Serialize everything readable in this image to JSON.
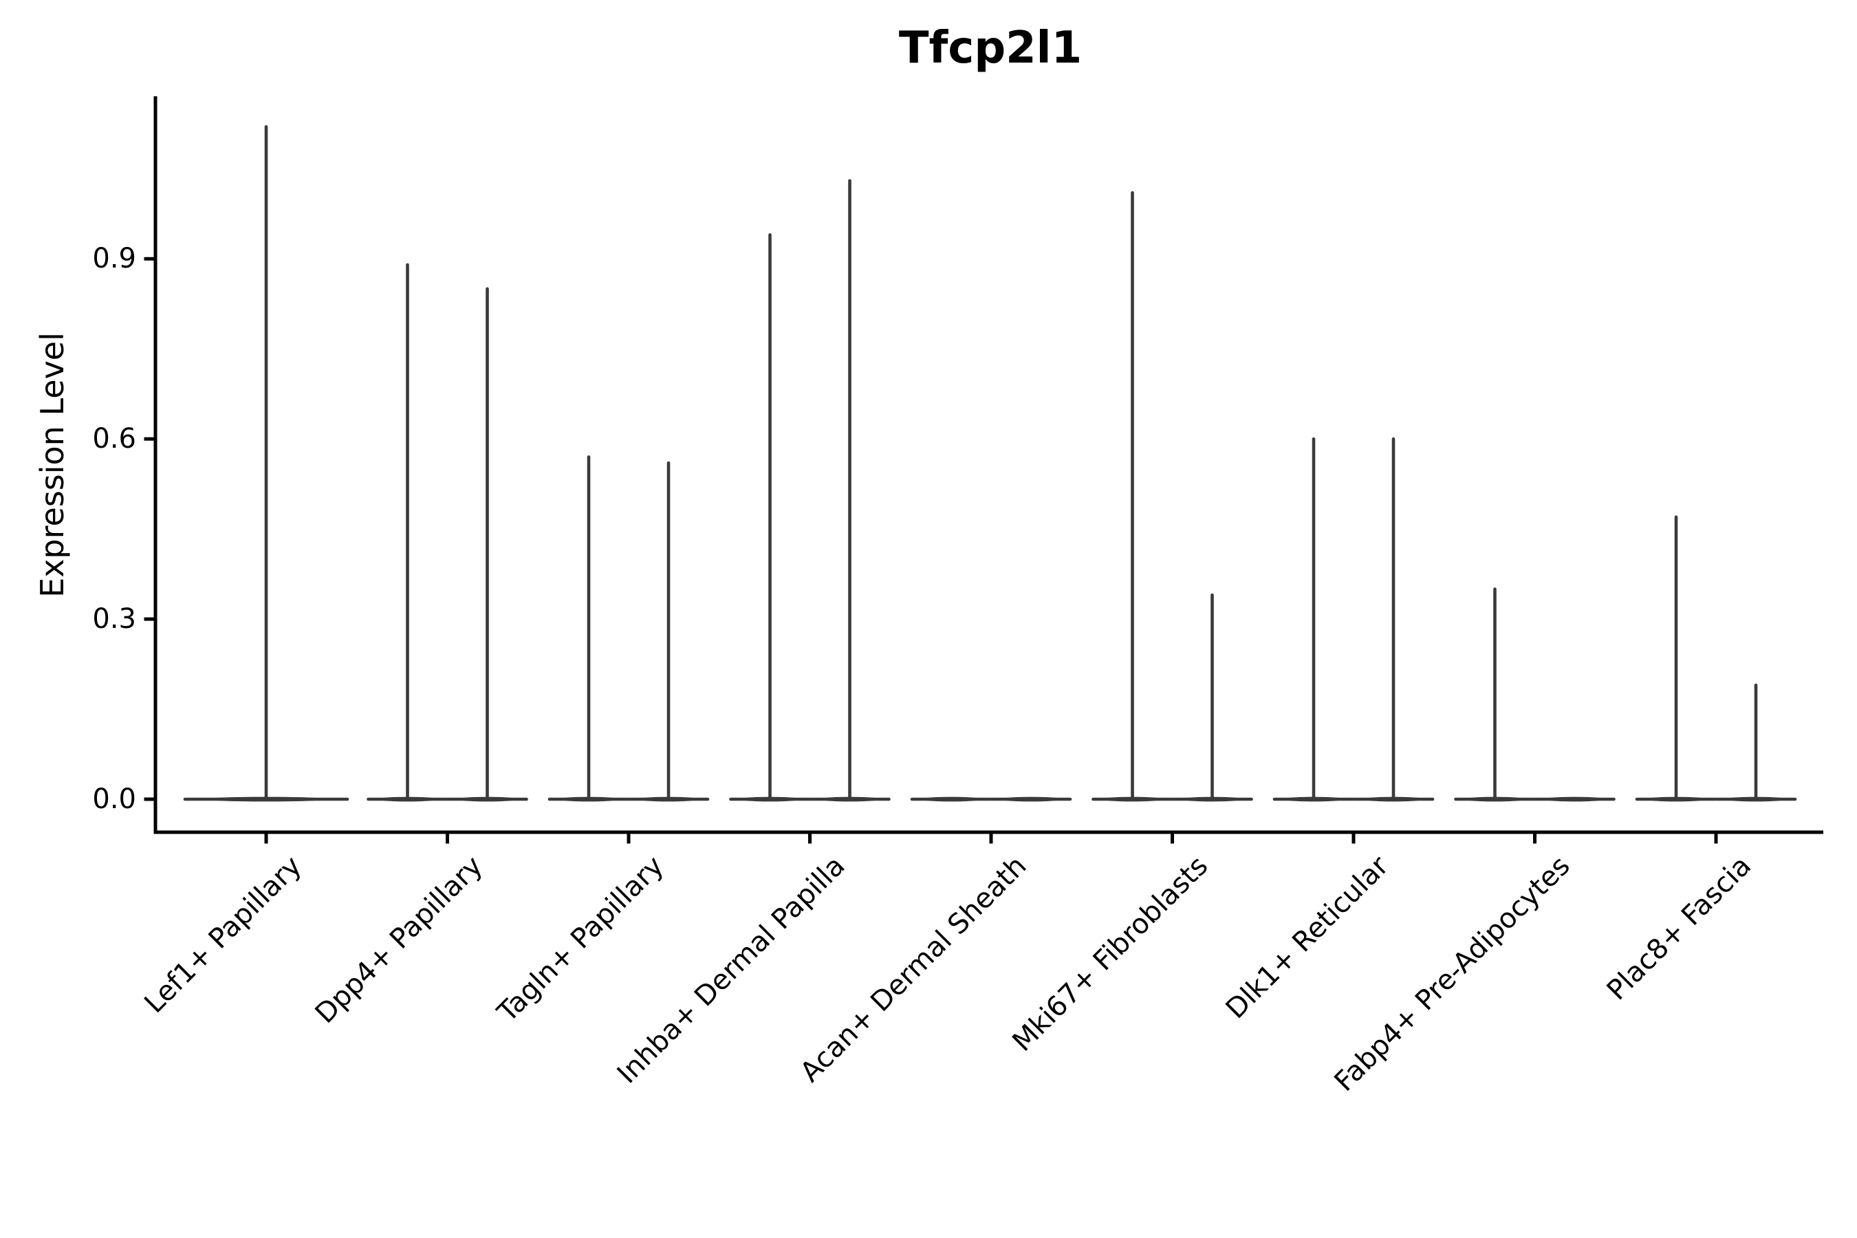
{
  "title": "Tfcp2l1",
  "y_axis": {
    "label": "Expression Level",
    "tick_labels": [
      "0.0",
      "0.3",
      "0.6",
      "0.9"
    ]
  },
  "x_axis": {
    "categories": [
      "Lef1+ Papillary",
      "Dpp4+ Papillary",
      "Tagln+ Papillary",
      "Inhba+ Dermal Papilla",
      "Acan+ Dermal Sheath",
      "Mki67+ Fibroblasts",
      "Dlk1+ Reticular",
      "Fabp4+ Pre-Adipocytes",
      "Plac8+ Fascia"
    ]
  },
  "chart_data": {
    "type": "violin",
    "title": "Tfcp2l1",
    "xlabel": "",
    "ylabel": "Expression Level",
    "ylim": [
      -0.06,
      1.17
    ],
    "yticks": [
      0.0,
      0.3,
      0.6,
      0.9
    ],
    "grid": false,
    "legend_position": "none",
    "description": "Violin plot of Tfcp2l1 expression; most cells at 0 so violins collapse to a flat line at baseline with thin spikes up to the maximum expression. Up to two dodged violins per cell-type category; a single full-width violin where only one group is present.",
    "categories": [
      "Lef1+ Papillary",
      "Dpp4+ Papillary",
      "Tagln+ Papillary",
      "Inhba+ Dermal Papilla",
      "Acan+ Dermal Sheath",
      "Mki67+ Fibroblasts",
      "Dlk1+ Reticular",
      "Fabp4+ Pre-Adipocytes",
      "Plac8+ Fascia"
    ],
    "violins": [
      {
        "category": "Lef1+ Papillary",
        "groups": [
          {
            "position": "center",
            "max_expression": 1.12
          }
        ]
      },
      {
        "category": "Dpp4+ Papillary",
        "groups": [
          {
            "position": "left",
            "max_expression": 0.89
          },
          {
            "position": "right",
            "max_expression": 0.85
          }
        ]
      },
      {
        "category": "Tagln+ Papillary",
        "groups": [
          {
            "position": "left",
            "max_expression": 0.57
          },
          {
            "position": "right",
            "max_expression": 0.56
          }
        ]
      },
      {
        "category": "Inhba+ Dermal Papilla",
        "groups": [
          {
            "position": "left",
            "max_expression": 0.94
          },
          {
            "position": "right",
            "max_expression": 1.03
          }
        ]
      },
      {
        "category": "Acan+ Dermal Sheath",
        "groups": [
          {
            "position": "left",
            "max_expression": 0.0
          },
          {
            "position": "right",
            "max_expression": 0.0
          }
        ]
      },
      {
        "category": "Mki67+ Fibroblasts",
        "groups": [
          {
            "position": "left",
            "max_expression": 1.01
          },
          {
            "position": "right",
            "max_expression": 0.34
          }
        ]
      },
      {
        "category": "Dlk1+ Reticular",
        "groups": [
          {
            "position": "left",
            "max_expression": 0.6
          },
          {
            "position": "right",
            "max_expression": 0.6
          }
        ]
      },
      {
        "category": "Fabp4+ Pre-Adipocytes",
        "groups": [
          {
            "position": "left",
            "max_expression": 0.35
          },
          {
            "position": "right",
            "max_expression": 0.0
          }
        ]
      },
      {
        "category": "Plac8+ Fascia",
        "groups": [
          {
            "position": "left",
            "max_expression": 0.47
          },
          {
            "position": "right",
            "max_expression": 0.19
          }
        ]
      }
    ],
    "baseline_value": 0.0
  },
  "colors": {
    "violin": "#3a3a3a",
    "axis": "#000000",
    "text": "#000000",
    "background": "#ffffff"
  }
}
